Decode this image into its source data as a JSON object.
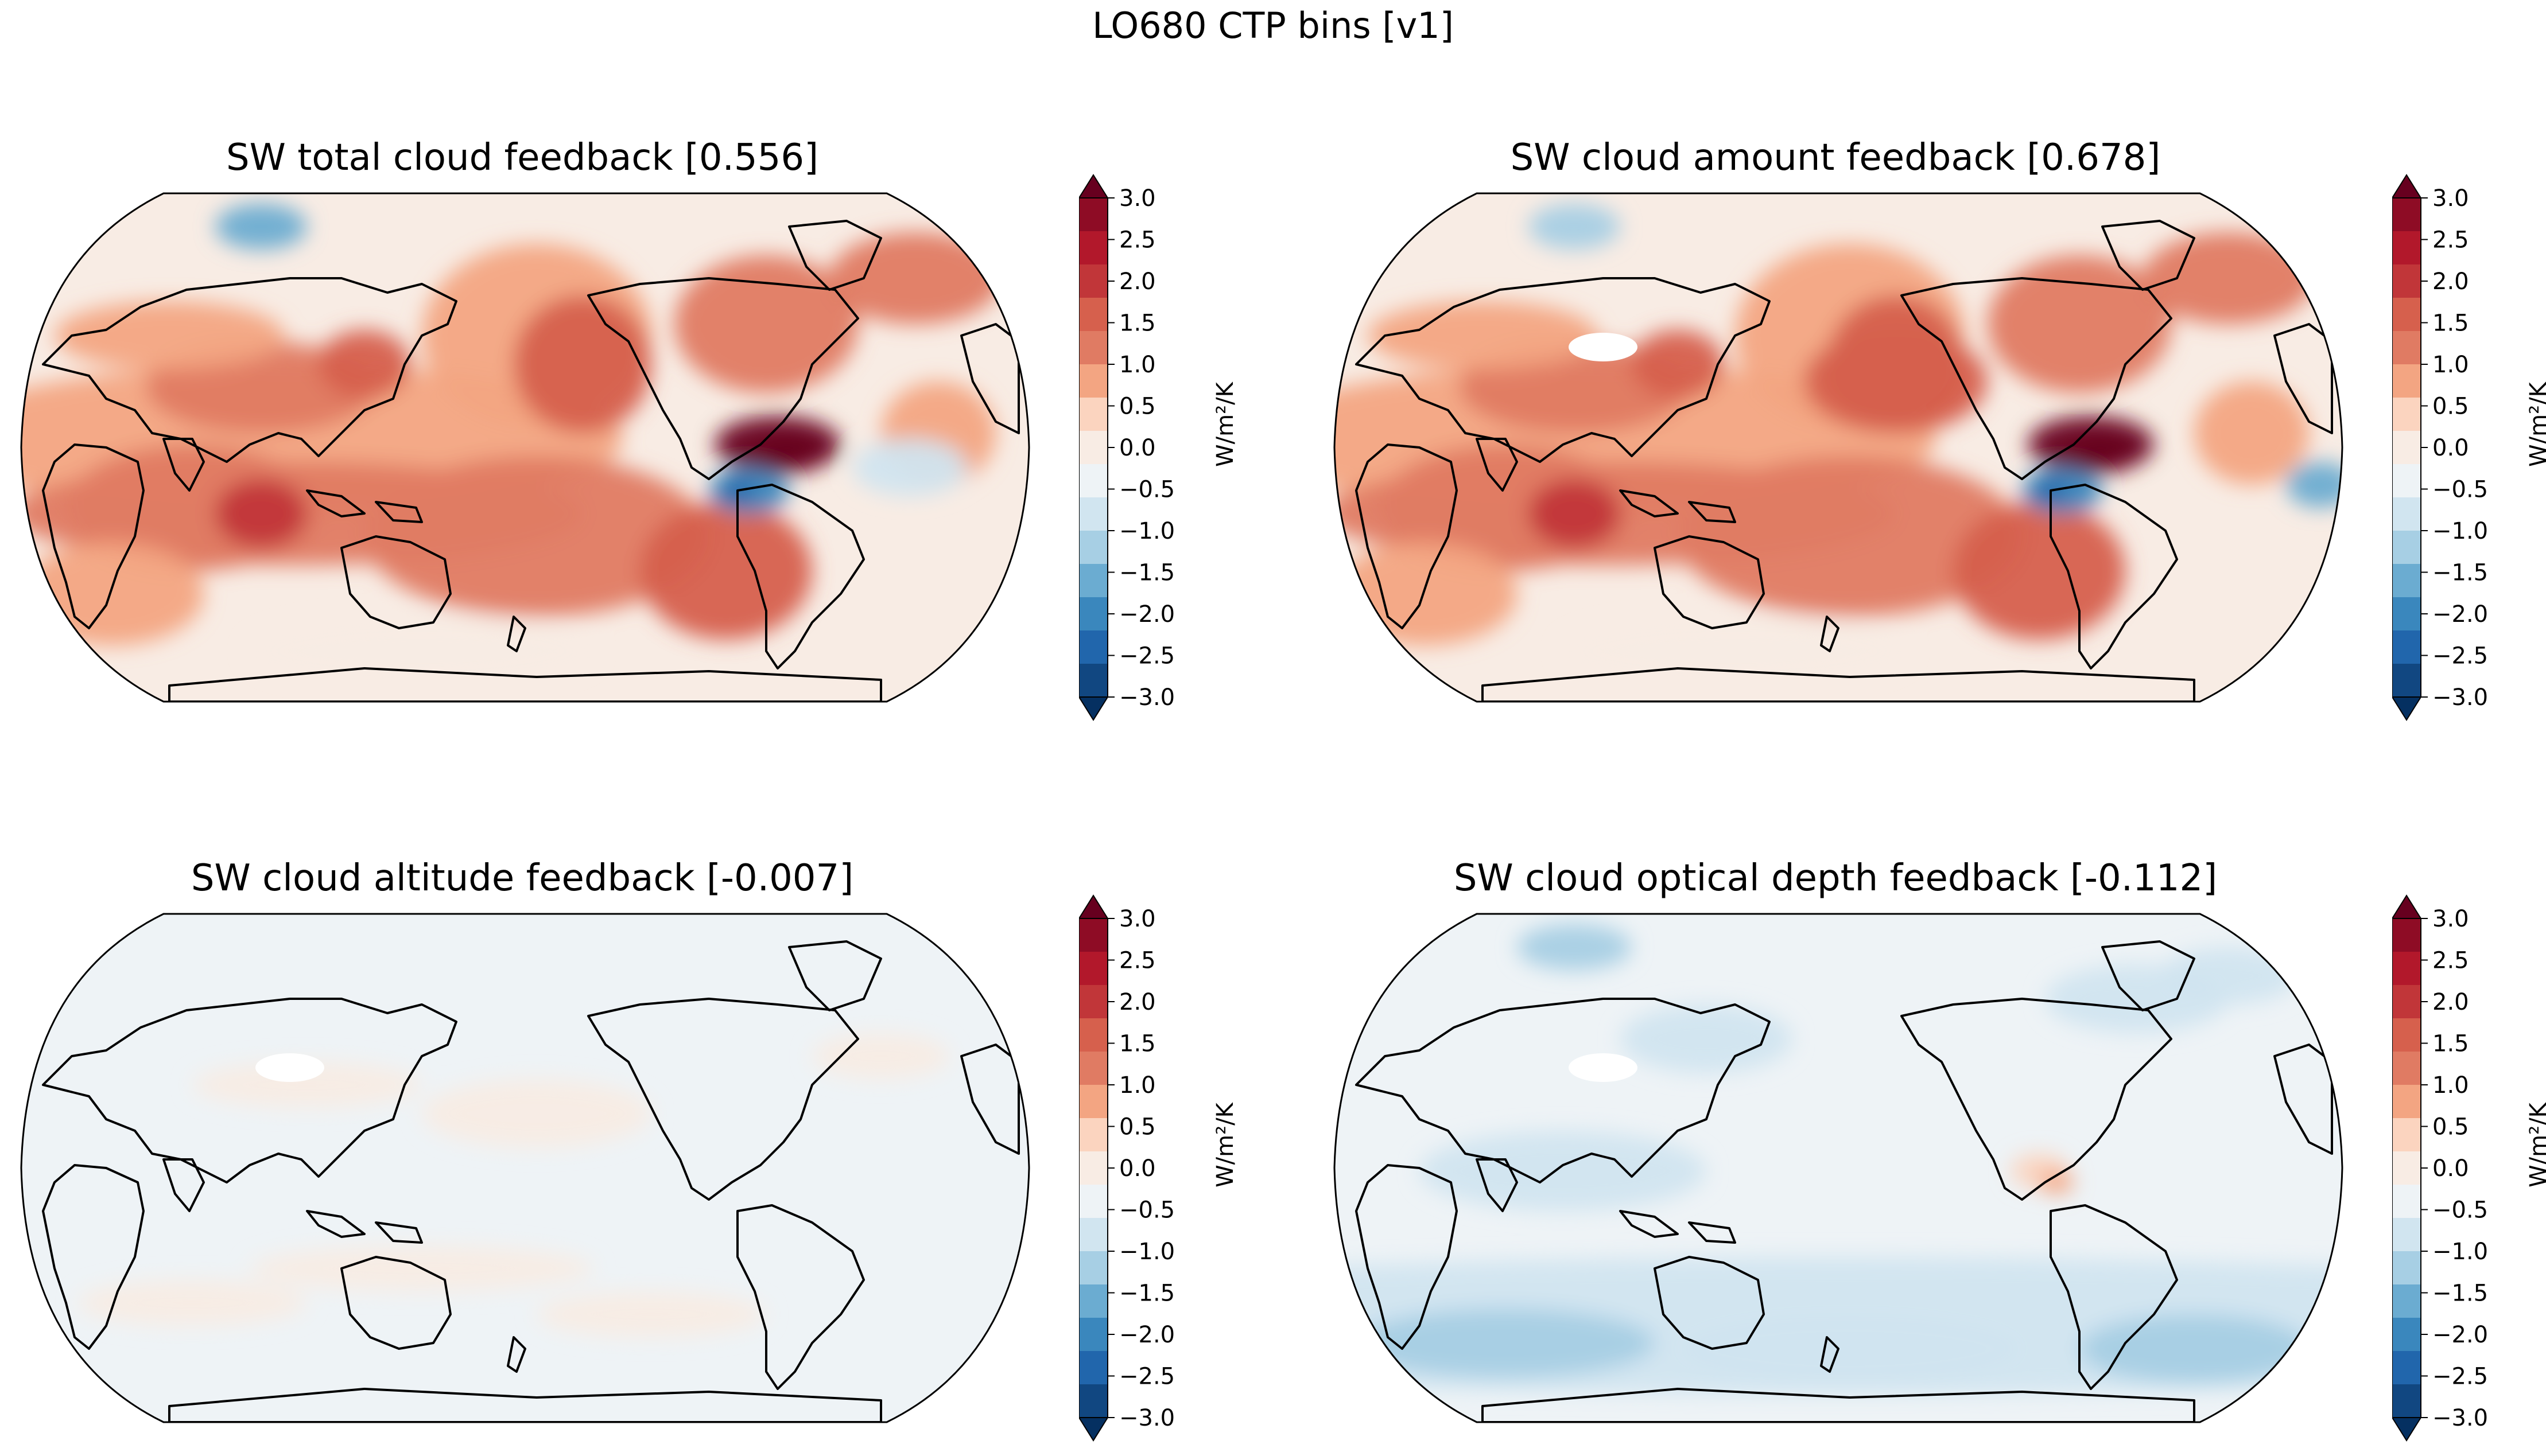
{
  "figure": {
    "suptitle": "LO680 CTP bins [v1]"
  },
  "colormap": {
    "name": "RdBu_r",
    "levels": [
      -3.0,
      -2.5,
      -2.0,
      -1.5,
      -1.0,
      -0.5,
      0.0,
      0.5,
      1.0,
      1.5,
      2.0,
      2.5,
      3.0
    ],
    "tick_labels": [
      "3.0",
      "2.5",
      "2.0",
      "1.5",
      "1.0",
      "0.5",
      "0.0",
      "−0.5",
      "−1.0",
      "−1.5",
      "−2.0",
      "−2.5",
      "−3.0"
    ],
    "colors": [
      "#053061",
      "#114781",
      "#2166ac",
      "#3a87bd",
      "#6bacd1",
      "#a7cfe4",
      "#d1e5f0",
      "#eef3f6",
      "#f8ece4",
      "#fbd4bf",
      "#f3a582",
      "#e07b63",
      "#d6604d",
      "#c13639",
      "#b2182b",
      "#8e0c25",
      "#67001f"
    ],
    "unit_label": "W/m²/K"
  },
  "panels": [
    {
      "title": "SW total cloud feedback [0.556]",
      "global_mean": 0.556,
      "character": "strong positive over eastern tropical Pacific and subtropical oceans, negative patch off Peru"
    },
    {
      "title": "SW cloud amount feedback [0.678]",
      "global_mean": 0.678,
      "character": "similar to total, slightly stronger positive"
    },
    {
      "title": "SW cloud altitude feedback [-0.007]",
      "global_mean": -0.007,
      "character": "near zero everywhere"
    },
    {
      "title": "SW cloud optical depth feedback [-0.112]",
      "global_mean": -0.112,
      "character": "weakly negative, strongest over Southern Ocean"
    }
  ]
}
